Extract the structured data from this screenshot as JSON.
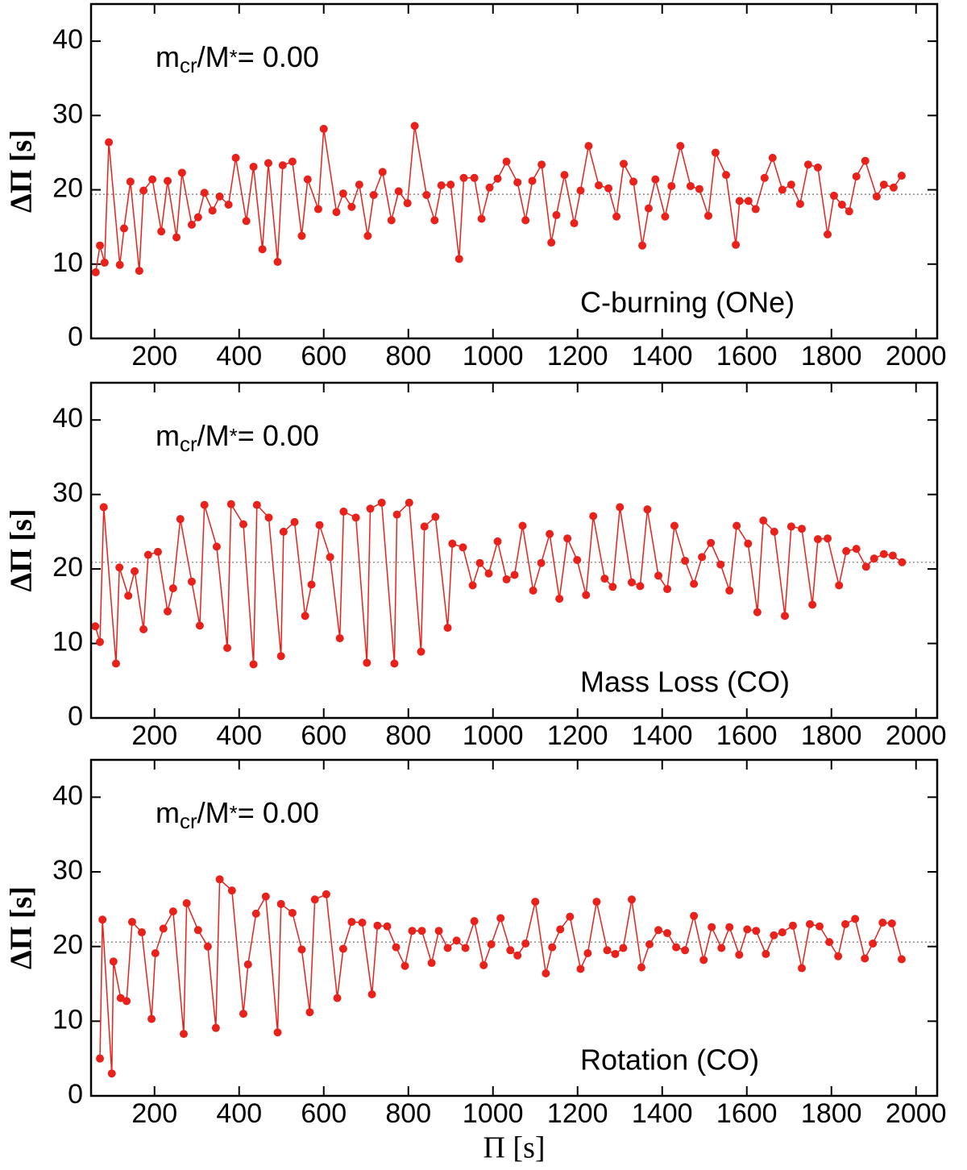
{
  "chart_data": [
    {
      "type": "line",
      "color": "#e8211b",
      "ylabel": "ΔΠ [s]",
      "annotation_parts": [
        "m",
        "cr",
        "/M",
        "*",
        "= 0.00"
      ],
      "label": "C-burning (ONe)",
      "xlim": [
        50,
        2050
      ],
      "ylim": [
        0,
        45
      ],
      "xticks": [
        200,
        400,
        600,
        800,
        1000,
        1200,
        1400,
        1600,
        1800,
        2000
      ],
      "yticks": [
        0,
        10,
        20,
        30,
        40
      ],
      "mean": 19.4,
      "x": [
        61,
        71,
        82,
        92,
        118,
        128,
        143,
        164,
        174,
        195,
        216,
        231,
        252,
        265,
        288,
        303,
        318,
        337,
        354,
        375,
        392,
        417,
        434,
        455,
        469,
        491,
        503,
        526,
        548,
        562,
        587,
        600,
        630,
        646,
        666,
        684,
        704,
        718,
        739,
        760,
        777,
        798,
        815,
        843,
        862,
        878,
        900,
        920,
        931,
        956,
        973,
        992,
        1011,
        1032,
        1058,
        1077,
        1093,
        1115,
        1138,
        1150,
        1169,
        1192,
        1207,
        1226,
        1250,
        1273,
        1292,
        1309,
        1332,
        1353,
        1368,
        1384,
        1407,
        1422,
        1443,
        1467,
        1488,
        1509,
        1526,
        1551,
        1574,
        1583,
        1604,
        1621,
        1642,
        1661,
        1684,
        1705,
        1726,
        1745,
        1768,
        1791,
        1806,
        1825,
        1842,
        1859,
        1880,
        1907,
        1924,
        1947,
        1966
      ],
      "values": [
        8.9,
        12.5,
        10.2,
        26.4,
        9.9,
        14.8,
        21.1,
        9.1,
        19.9,
        21.4,
        14.4,
        21.2,
        13.6,
        22.3,
        15.3,
        16.3,
        19.6,
        17.2,
        19.1,
        18.0,
        24.3,
        15.8,
        23.1,
        12.0,
        23.6,
        10.3,
        23.3,
        23.8,
        13.8,
        21.4,
        17.4,
        28.2,
        17.0,
        19.5,
        17.7,
        20.7,
        13.8,
        19.3,
        22.4,
        15.9,
        19.8,
        18.2,
        28.6,
        19.3,
        15.9,
        20.6,
        20.7,
        10.7,
        21.6,
        21.6,
        16.1,
        20.3,
        21.5,
        23.8,
        21.0,
        15.9,
        21.2,
        23.4,
        12.9,
        16.6,
        22.0,
        15.5,
        19.9,
        25.9,
        20.6,
        20.2,
        16.4,
        23.5,
        21.1,
        12.5,
        17.5,
        21.4,
        16.4,
        20.5,
        25.9,
        20.5,
        20.1,
        16.5,
        25.0,
        22.0,
        12.6,
        18.5,
        18.5,
        17.4,
        21.6,
        24.3,
        20.0,
        20.7,
        18.1,
        23.4,
        23.0,
        14.0,
        19.2,
        18.0,
        17.1,
        21.8,
        23.9,
        19.1,
        20.7,
        20.3,
        21.9
      ]
    },
    {
      "type": "line",
      "color": "#e8211b",
      "ylabel": "ΔΠ [s]",
      "annotation_parts": [
        "m",
        "cr",
        "/M",
        "*",
        "= 0.00"
      ],
      "label": "Mass Loss (CO)",
      "xlim": [
        50,
        2050
      ],
      "ylim": [
        0,
        45
      ],
      "xticks": [
        200,
        400,
        600,
        800,
        1000,
        1200,
        1400,
        1600,
        1800,
        2000
      ],
      "yticks": [
        0,
        10,
        20,
        30,
        40
      ],
      "mean": 20.9,
      "x": [
        60,
        71,
        80,
        109,
        117,
        138,
        153,
        174,
        185,
        208,
        231,
        244,
        261,
        288,
        307,
        318,
        347,
        372,
        381,
        410,
        434,
        442,
        470,
        499,
        505,
        531,
        556,
        571,
        590,
        615,
        638,
        647,
        676,
        702,
        710,
        737,
        767,
        773,
        802,
        830,
        838,
        864,
        893,
        904,
        929,
        952,
        969,
        990,
        1011,
        1032,
        1051,
        1070,
        1095,
        1114,
        1134,
        1157,
        1176,
        1199,
        1220,
        1237,
        1264,
        1283,
        1300,
        1328,
        1348,
        1365,
        1391,
        1412,
        1429,
        1454,
        1475,
        1494,
        1515,
        1538,
        1559,
        1576,
        1603,
        1625,
        1639,
        1665,
        1690,
        1705,
        1730,
        1755,
        1768,
        1791,
        1818,
        1835,
        1859,
        1882,
        1901,
        1924,
        1945,
        1967
      ],
      "values": [
        12.3,
        10.2,
        28.3,
        7.3,
        20.2,
        16.4,
        19.7,
        11.9,
        21.9,
        22.3,
        14.3,
        17.4,
        26.7,
        18.3,
        12.4,
        28.6,
        23.0,
        9.4,
        28.7,
        26.0,
        7.2,
        28.6,
        26.9,
        8.3,
        25.0,
        26.3,
        13.7,
        17.9,
        25.9,
        21.6,
        10.7,
        27.7,
        26.9,
        7.4,
        28.1,
        28.9,
        7.3,
        27.3,
        28.9,
        8.9,
        25.7,
        27.0,
        12.1,
        23.4,
        22.9,
        17.8,
        20.8,
        19.4,
        23.7,
        18.6,
        19.2,
        25.8,
        17.1,
        20.8,
        24.7,
        16.0,
        24.1,
        21.2,
        16.5,
        27.1,
        18.7,
        17.6,
        28.3,
        18.2,
        17.7,
        28.0,
        19.1,
        17.3,
        25.8,
        21.1,
        18.0,
        21.6,
        23.5,
        20.6,
        17.1,
        25.8,
        23.4,
        14.2,
        26.5,
        25.0,
        13.7,
        25.7,
        25.4,
        15.2,
        24.0,
        24.1,
        17.8,
        22.4,
        22.7,
        20.3,
        21.4,
        22.0,
        21.8,
        20.9
      ]
    },
    {
      "type": "line",
      "color": "#e8211b",
      "ylabel": "ΔΠ [s]",
      "xlabel": "Π [s]",
      "annotation_parts": [
        "m",
        "cr",
        "/M",
        "*",
        "= 0.00"
      ],
      "label": "Rotation (CO)",
      "xlim": [
        50,
        2050
      ],
      "ylim": [
        0,
        45
      ],
      "xticks": [
        200,
        400,
        600,
        800,
        1000,
        1200,
        1400,
        1600,
        1800,
        2000
      ],
      "yticks": [
        0,
        10,
        20,
        30,
        40
      ],
      "mean": 20.6,
      "x": [
        71,
        77,
        99,
        103,
        120,
        134,
        147,
        170,
        193,
        202,
        221,
        244,
        269,
        276,
        303,
        326,
        345,
        354,
        383,
        410,
        421,
        440,
        463,
        491,
        499,
        526,
        548,
        567,
        579,
        606,
        632,
        646,
        666,
        691,
        714,
        727,
        750,
        771,
        792,
        809,
        832,
        855,
        872,
        893,
        914,
        935,
        956,
        978,
        996,
        1018,
        1041,
        1058,
        1077,
        1100,
        1125,
        1140,
        1159,
        1182,
        1207,
        1224,
        1245,
        1270,
        1289,
        1308,
        1328,
        1351,
        1370,
        1391,
        1412,
        1433,
        1454,
        1475,
        1498,
        1517,
        1540,
        1559,
        1582,
        1601,
        1622,
        1645,
        1664,
        1684,
        1709,
        1730,
        1749,
        1772,
        1795,
        1816,
        1833,
        1856,
        1879,
        1898,
        1921,
        1943,
        1966
      ],
      "values": [
        5.0,
        23.6,
        3.0,
        18.0,
        13.1,
        12.7,
        23.3,
        21.9,
        10.3,
        19.1,
        22.4,
        24.7,
        8.3,
        25.8,
        22.2,
        20.0,
        9.1,
        29.0,
        27.5,
        11.0,
        17.6,
        24.4,
        26.7,
        8.5,
        25.7,
        24.5,
        19.6,
        11.2,
        26.3,
        27.0,
        13.1,
        19.7,
        23.3,
        23.2,
        13.6,
        22.8,
        22.7,
        19.9,
        17.4,
        22.1,
        22.1,
        17.8,
        22.1,
        19.8,
        20.8,
        19.8,
        23.4,
        17.5,
        20.3,
        23.8,
        19.5,
        18.8,
        20.4,
        26.0,
        16.4,
        19.9,
        22.3,
        24.0,
        17.0,
        19.1,
        26.0,
        19.5,
        19.0,
        19.8,
        26.3,
        17.2,
        20.3,
        22.2,
        21.8,
        19.9,
        19.5,
        24.1,
        18.2,
        22.6,
        19.8,
        22.6,
        18.9,
        22.3,
        22.1,
        19.0,
        21.5,
        21.9,
        22.8,
        17.1,
        23.0,
        22.7,
        20.6,
        18.7,
        23.0,
        23.7,
        18.4,
        20.4,
        23.2,
        23.1,
        18.3
      ]
    }
  ]
}
